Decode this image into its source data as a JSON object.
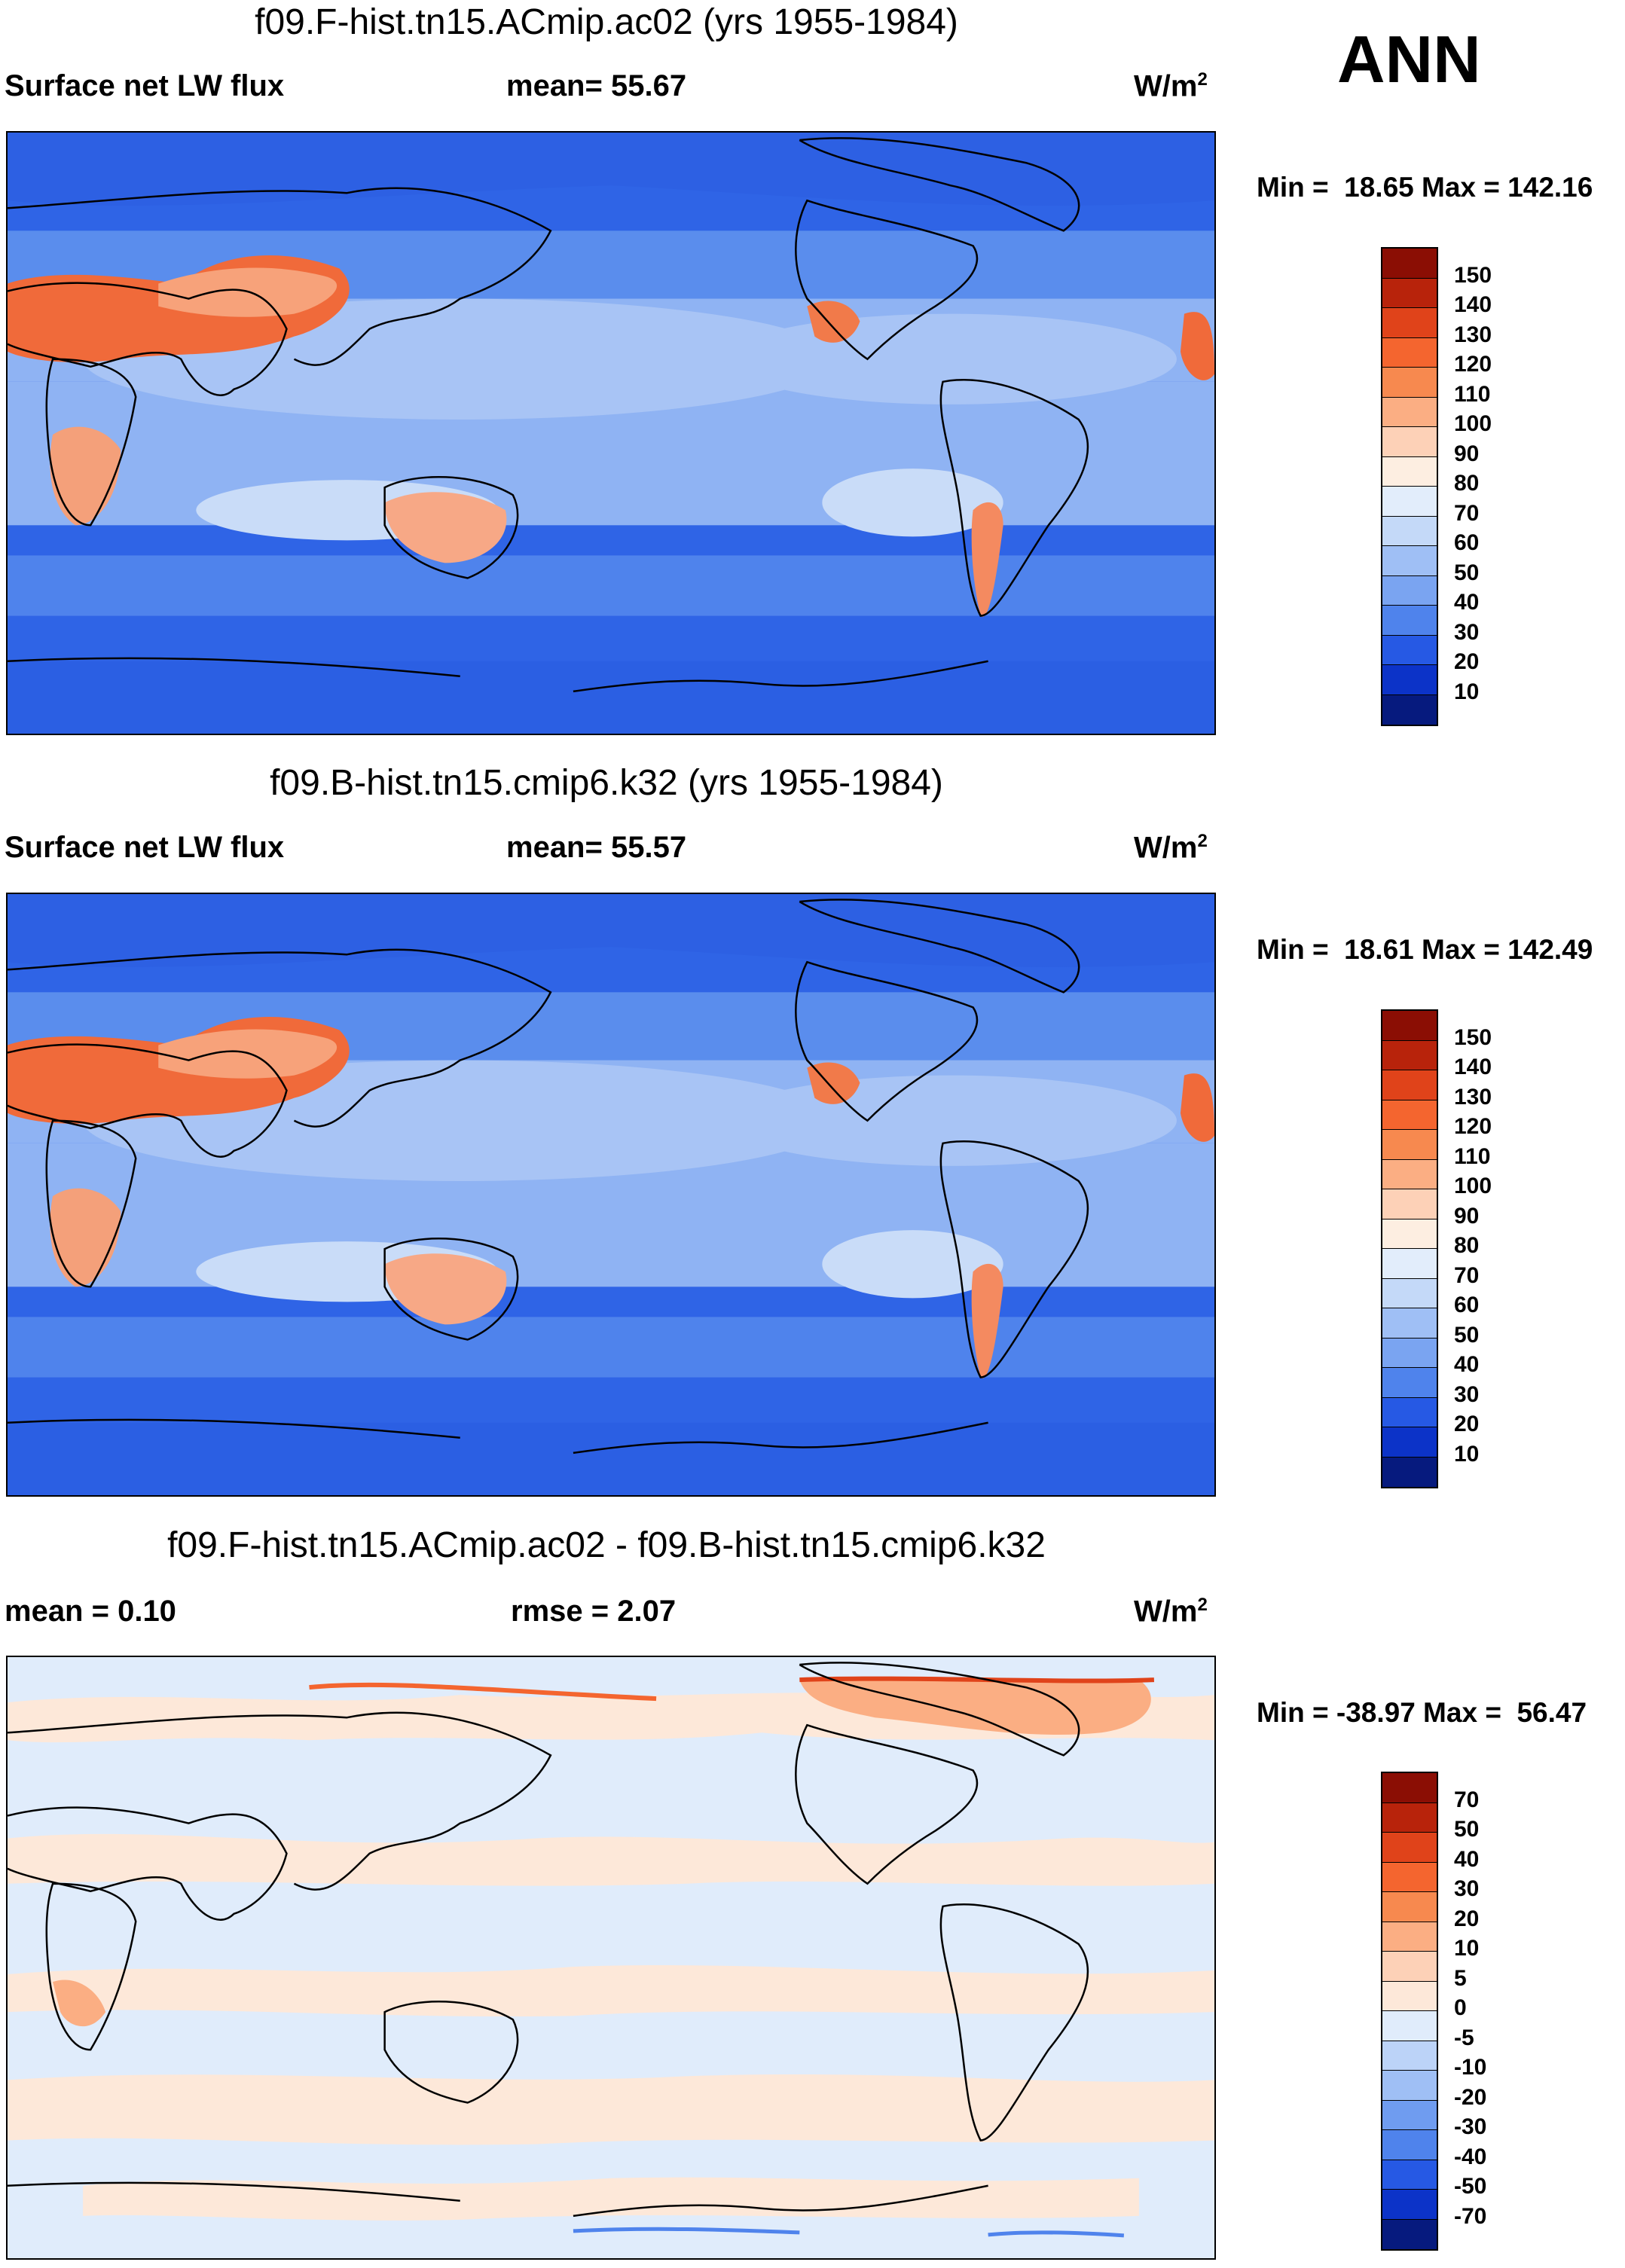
{
  "season": "ANN",
  "panels": [
    {
      "title": "f09.F-hist.tn15.ACmip.ac02 (yrs 1955-1984)",
      "left_label": "Surface net LW flux",
      "mid_label": "mean=  55.67",
      "units_base": "W/m",
      "units_exp": "2",
      "minmax": "Min =  18.65 Max = 142.16"
    },
    {
      "title": "f09.B-hist.tn15.cmip6.k32 (yrs 1955-1984)",
      "left_label": "Surface net LW flux",
      "mid_label": "mean=  55.57",
      "units_base": "W/m",
      "units_exp": "2",
      "minmax": "Min =  18.61 Max = 142.49"
    },
    {
      "title": "f09.F-hist.tn15.ACmip.ac02 - f09.B-hist.tn15.cmip6.k32",
      "left_label": "mean =   0.10",
      "mid_label": "rmse =   2.07",
      "units_base": "W/m",
      "units_exp": "2",
      "minmax": "Min = -38.97 Max =  56.47"
    }
  ],
  "colorbar_abs": {
    "labels": [
      "150",
      "140",
      "130",
      "120",
      "110",
      "100",
      "90",
      "80",
      "70",
      "60",
      "50",
      "40",
      "30",
      "20",
      "10"
    ],
    "colors": [
      "#8b0e04",
      "#b8230b",
      "#e0431a",
      "#f4652f",
      "#f7894f",
      "#fbae83",
      "#fdd1b7",
      "#fdeee1",
      "#e2edfb",
      "#c4d9f8",
      "#9fbff5",
      "#7aa4f1",
      "#4f83ec",
      "#2659e4",
      "#0c33c8",
      "#061a7e"
    ]
  },
  "colorbar_diff": {
    "labels": [
      "70",
      "50",
      "40",
      "30",
      "20",
      "10",
      "5",
      "0",
      "-5",
      "-10",
      "-20",
      "-30",
      "-40",
      "-50",
      "-70"
    ],
    "colors": [
      "#8b0e04",
      "#b8230b",
      "#e0431a",
      "#f4652f",
      "#f7894f",
      "#fbae83",
      "#fdd1b7",
      "#fde8d9",
      "#e0ecfb",
      "#bcd3f8",
      "#9fbff5",
      "#6f9cf0",
      "#4f83ec",
      "#2659e4",
      "#0c33c8",
      "#061a7e"
    ]
  }
}
